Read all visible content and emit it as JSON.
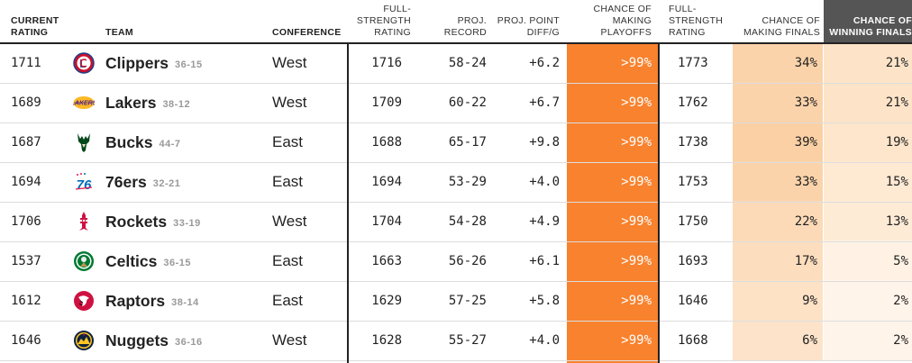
{
  "headers": {
    "current_rating": [
      "CURRENT",
      "RATING"
    ],
    "team": "TEAM",
    "conference": "CONFERENCE",
    "full_strength_rating": [
      "FULL-",
      "STRENGTH",
      "RATING"
    ],
    "proj_record": [
      "PROJ.",
      "RECORD"
    ],
    "proj_point_diff": [
      "PROJ. POINT",
      "DIFF/G"
    ],
    "chance_playoffs": [
      "CHANCE OF",
      "MAKING",
      "PLAYOFFS"
    ],
    "full_strength_rating_2": [
      "FULL-",
      "STRENGTH",
      "RATING"
    ],
    "chance_finals": [
      "CHANCE OF",
      "MAKING FINALS"
    ],
    "chance_winning": [
      "CHANCE OF",
      "WINNING FINALS"
    ]
  },
  "colors": {
    "playoffs_fill": "#f8822e",
    "finals_scale": [
      "#fde7d0",
      "#fbcfa3"
    ],
    "winning_scale": [
      "#fff6ee",
      "#fde3c6"
    ]
  },
  "rows": [
    {
      "current": "1711",
      "team": "Clippers",
      "record": "36-15",
      "logo": "clippers-logo-icon",
      "conference": "West",
      "full_strength": "1716",
      "proj_record": "58-24",
      "diff": "+6.2",
      "playoffs": ">99%",
      "full_strength_2": "1773",
      "finals": "34%",
      "finals_level": 34,
      "winning": "21%",
      "winning_level": 21
    },
    {
      "current": "1689",
      "team": "Lakers",
      "record": "38-12",
      "logo": "lakers-logo-icon",
      "conference": "West",
      "full_strength": "1709",
      "proj_record": "60-22",
      "diff": "+6.7",
      "playoffs": ">99%",
      "full_strength_2": "1762",
      "finals": "33%",
      "finals_level": 33,
      "winning": "21%",
      "winning_level": 21
    },
    {
      "current": "1687",
      "team": "Bucks",
      "record": "44-7",
      "logo": "bucks-logo-icon",
      "conference": "East",
      "full_strength": "1688",
      "proj_record": "65-17",
      "diff": "+9.8",
      "playoffs": ">99%",
      "full_strength_2": "1738",
      "finals": "39%",
      "finals_level": 39,
      "winning": "19%",
      "winning_level": 19
    },
    {
      "current": "1694",
      "team": "76ers",
      "record": "32-21",
      "logo": "76ers-logo-icon",
      "conference": "East",
      "full_strength": "1694",
      "proj_record": "53-29",
      "diff": "+4.0",
      "playoffs": ">99%",
      "full_strength_2": "1753",
      "finals": "33%",
      "finals_level": 33,
      "winning": "15%",
      "winning_level": 15
    },
    {
      "current": "1706",
      "team": "Rockets",
      "record": "33-19",
      "logo": "rockets-logo-icon",
      "conference": "West",
      "full_strength": "1704",
      "proj_record": "54-28",
      "diff": "+4.9",
      "playoffs": ">99%",
      "full_strength_2": "1750",
      "finals": "22%",
      "finals_level": 22,
      "winning": "13%",
      "winning_level": 13
    },
    {
      "current": "1537",
      "team": "Celtics",
      "record": "36-15",
      "logo": "celtics-logo-icon",
      "conference": "East",
      "full_strength": "1663",
      "proj_record": "56-26",
      "diff": "+6.1",
      "playoffs": ">99%",
      "full_strength_2": "1693",
      "finals": "17%",
      "finals_level": 17,
      "winning": "5%",
      "winning_level": 5
    },
    {
      "current": "1612",
      "team": "Raptors",
      "record": "38-14",
      "logo": "raptors-logo-icon",
      "conference": "East",
      "full_strength": "1629",
      "proj_record": "57-25",
      "diff": "+5.8",
      "playoffs": ">99%",
      "full_strength_2": "1646",
      "finals": "9%",
      "finals_level": 9,
      "winning": "2%",
      "winning_level": 2
    },
    {
      "current": "1646",
      "team": "Nuggets",
      "record": "36-16",
      "logo": "nuggets-logo-icon",
      "conference": "West",
      "full_strength": "1628",
      "proj_record": "55-27",
      "diff": "+4.0",
      "playoffs": ">99%",
      "full_strength_2": "1668",
      "finals": "6%",
      "finals_level": 6,
      "winning": "2%",
      "winning_level": 2
    }
  ]
}
